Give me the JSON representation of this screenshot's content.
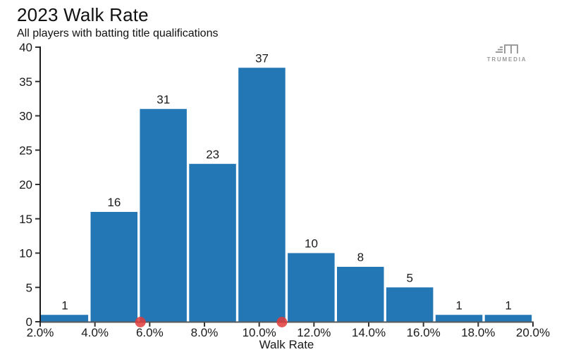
{
  "header": {
    "title": "2023 Walk Rate",
    "subtitle": "All players with batting title qualifications"
  },
  "logo": {
    "text": "TRUMEDIA"
  },
  "chart_data": {
    "type": "bar",
    "title": "2023 Walk Rate",
    "subtitle": "All players with batting title qualifications",
    "xlabel": "Walk Rate",
    "ylabel": "",
    "xlim": [
      2,
      20
    ],
    "ylim": [
      0,
      40
    ],
    "grid": false,
    "legend": null,
    "x_ticks": [
      "2.0%",
      "4.0%",
      "6.0%",
      "8.0%",
      "10.0%",
      "12.0%",
      "14.0%",
      "16.0%",
      "18.0%",
      "20.0%"
    ],
    "y_ticks": [
      0,
      5,
      10,
      15,
      20,
      25,
      30,
      35,
      40
    ],
    "bin_width_pct": 1.8,
    "bins": [
      {
        "start": 2.0,
        "end": 3.8,
        "count": 1
      },
      {
        "start": 3.8,
        "end": 5.6,
        "count": 16
      },
      {
        "start": 5.6,
        "end": 7.4,
        "count": 31
      },
      {
        "start": 7.4,
        "end": 9.2,
        "count": 23
      },
      {
        "start": 9.2,
        "end": 11.0,
        "count": 37
      },
      {
        "start": 11.0,
        "end": 12.8,
        "count": 10
      },
      {
        "start": 12.8,
        "end": 14.6,
        "count": 8
      },
      {
        "start": 14.6,
        "end": 16.4,
        "count": 5
      },
      {
        "start": 16.4,
        "end": 18.2,
        "count": 1
      },
      {
        "start": 18.2,
        "end": 20.0,
        "count": 1
      }
    ],
    "markers": [
      {
        "x": 5.66
      },
      {
        "x": 10.83
      }
    ],
    "colors": {
      "bar": "#2277b4",
      "marker": "#e03c3c",
      "x_axis": "#58595b",
      "y_axis": "#1a1a1a",
      "tick": "#333333",
      "text": "#1a1a1a",
      "logo": "#909090"
    }
  }
}
